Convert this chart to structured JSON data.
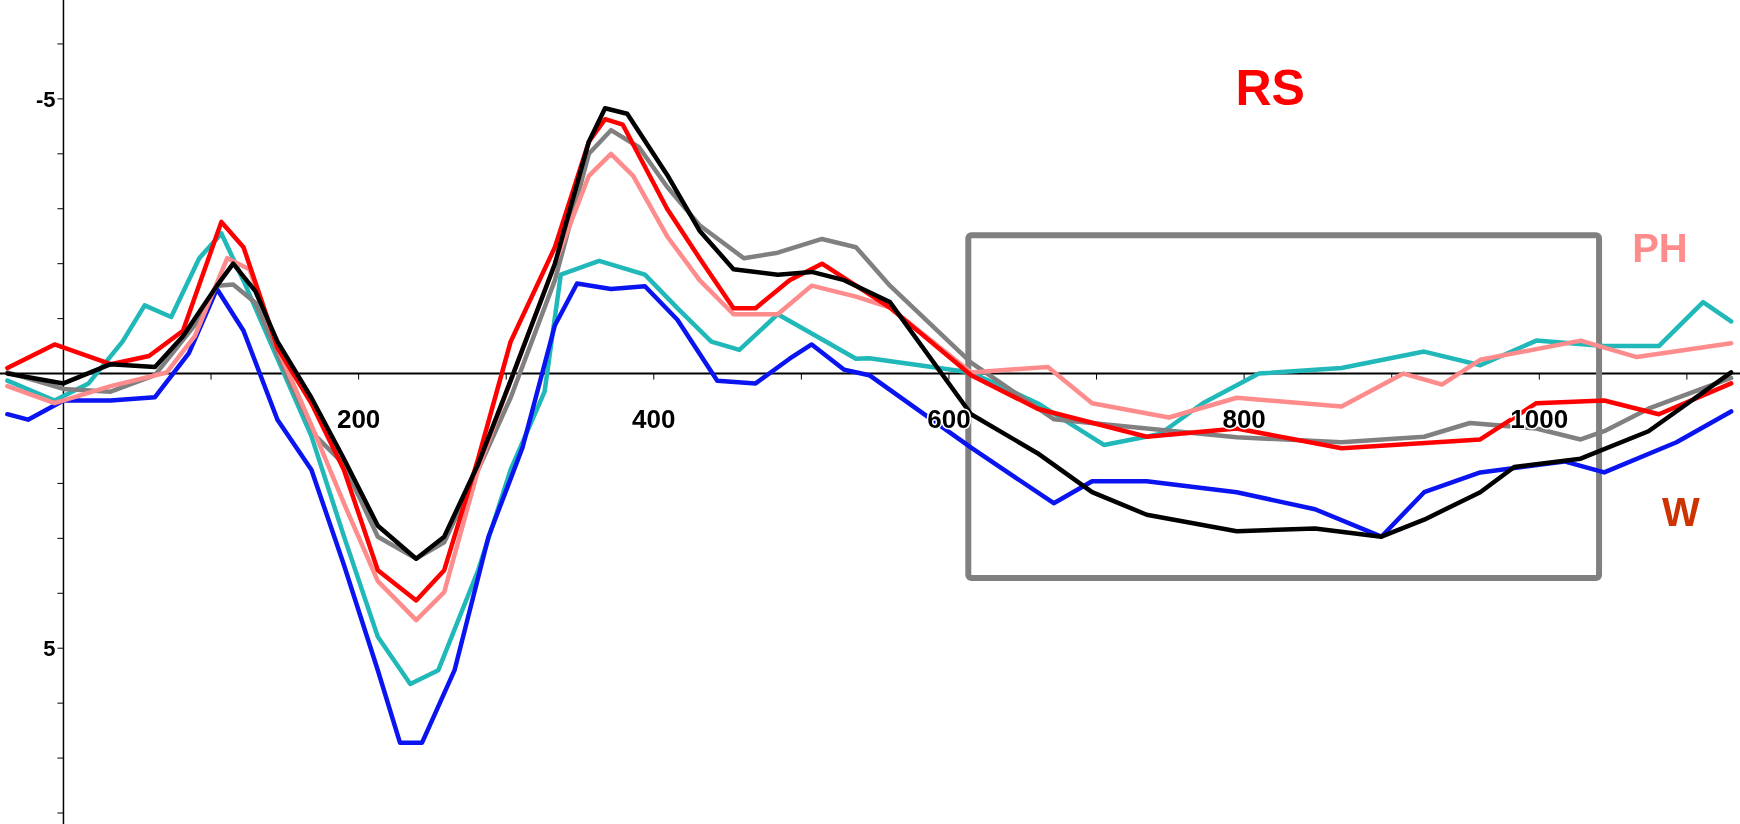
{
  "chart_data": {
    "type": "line",
    "title": "RS",
    "annotations": [
      "W"
    ],
    "xlim": [
      -43,
      1136
    ],
    "ylim": [
      8.2,
      -6.8
    ],
    "xticks": [
      {
        "value": 100,
        "label": null
      },
      200,
      {
        "value": 300,
        "label": null
      },
      400,
      {
        "value": 500,
        "label": null
      },
      600,
      {
        "value": 700,
        "label": null
      },
      800,
      {
        "value": 900,
        "label": null
      },
      1000,
      {
        "value": 1100,
        "label": null
      }
    ],
    "yticks": [
      {
        "value": -6,
        "label": null
      },
      -5,
      {
        "value": -4,
        "label": null
      },
      {
        "value": -3,
        "label": null
      },
      {
        "value": -2,
        "label": null
      },
      {
        "value": -1,
        "label": null
      },
      {
        "value": 0,
        "label": null
      },
      {
        "value": 1,
        "label": null
      },
      {
        "value": 2,
        "label": null
      },
      {
        "value": 3,
        "label": null
      },
      {
        "value": 4,
        "label": null
      },
      5,
      {
        "value": 6,
        "label": null
      },
      {
        "value": 7,
        "label": null
      },
      {
        "value": 8,
        "label": null
      }
    ],
    "grid": false,
    "marker": "none",
    "line_style": "solid",
    "series": [
      {
        "color": "#20b8b8",
        "x": [
          -38,
          -6,
          17,
          40,
          55,
          73,
          92,
          107,
          122,
          145,
          168,
          190,
          213,
          235,
          254,
          281,
          303,
          326,
          337,
          363,
          394,
          416,
          439,
          458,
          484,
          507,
          537,
          546,
          615,
          660,
          705,
          743,
          772,
          810,
          866,
          922,
          960,
          998,
          1044,
          1081,
          1111,
          1130
        ],
        "values": [
          0.13,
          0.49,
          0.18,
          -0.58,
          -1.24,
          -1.03,
          -2.1,
          -2.55,
          -1.69,
          -0.27,
          1.14,
          2.96,
          4.79,
          5.65,
          5.4,
          3.58,
          1.75,
          0.33,
          -1.8,
          -2.05,
          -1.8,
          -1.19,
          -0.58,
          -0.43,
          -1.08,
          -0.73,
          -0.27,
          -0.28,
          -0.02,
          0.54,
          1.3,
          1.1,
          0.54,
          0,
          -0.1,
          -0.4,
          -0.15,
          -0.6,
          -0.5,
          -0.5,
          -1.3,
          -0.95
        ]
      },
      {
        "color": "#0a14f0",
        "x": [
          -38,
          -24,
          0,
          32,
          62,
          85,
          104,
          122,
          145,
          168,
          190,
          213,
          228,
          243,
          265,
          288,
          311,
          333,
          348,
          371,
          394,
          416,
          443,
          469,
          492,
          507,
          529,
          546,
          615,
          671,
          697,
          734,
          795,
          848,
          893,
          922,
          960,
          1017,
          1044,
          1093,
          1130
        ],
        "values": [
          0.74,
          0.84,
          0.49,
          0.49,
          0.43,
          -0.37,
          -1.54,
          -0.78,
          0.84,
          1.75,
          3.48,
          5.4,
          6.72,
          6.72,
          5.4,
          2.97,
          1.35,
          -0.88,
          -1.64,
          -1.54,
          -1.59,
          -0.98,
          0.13,
          0.18,
          -0.27,
          -0.53,
          -0.07,
          0.03,
          1.35,
          2.36,
          1.96,
          1.96,
          2.16,
          2.47,
          2.97,
          2.16,
          1.8,
          1.6,
          1.8,
          1.25,
          0.69
        ]
      },
      {
        "color": "#808080",
        "x": [
          -38,
          0,
          32,
          62,
          89,
          104,
          115,
          130,
          153,
          171,
          190,
          213,
          239,
          258,
          281,
          303,
          333,
          356,
          371,
          390,
          409,
          431,
          461,
          484,
          514,
          537,
          560,
          615,
          671,
          734,
          795,
          866,
          922,
          953,
          998,
          1028,
          1044,
          1074,
          1130
        ],
        "values": [
          -0.02,
          0.28,
          0.33,
          0.03,
          -0.88,
          -1.6,
          -1.62,
          -1.29,
          0.13,
          1.14,
          1.65,
          2.97,
          3.37,
          3.07,
          1.75,
          0.44,
          -1.7,
          -4.0,
          -4.43,
          -4.12,
          -3.4,
          -2.7,
          -2.1,
          -2.2,
          -2.45,
          -2.3,
          -1.6,
          -0.2,
          0.83,
          1.0,
          1.16,
          1.25,
          1.15,
          0.9,
          1.0,
          1.2,
          1.05,
          0.64,
          0.08
        ]
      },
      {
        "name": "PH",
        "color": "#ff8c8c",
        "x": [
          -38,
          -6,
          32,
          70,
          89,
          111,
          126,
          145,
          168,
          190,
          213,
          239,
          258,
          281,
          303,
          333,
          356,
          371,
          386,
          409,
          431,
          454,
          484,
          507,
          537,
          560,
          615,
          667,
          697,
          749,
          795,
          866,
          908,
          934,
          960,
          1028,
          1066,
          1130
        ],
        "values": [
          0.23,
          0.54,
          0.23,
          -0.02,
          -0.68,
          -2.1,
          -1.9,
          -0.47,
          0.94,
          2.36,
          3.78,
          4.49,
          3.98,
          1.75,
          0.13,
          -2.0,
          -3.6,
          -4.0,
          -3.6,
          -2.5,
          -1.7,
          -1.08,
          -1.08,
          -1.6,
          -1.4,
          -1.2,
          -0.02,
          -0.12,
          0.54,
          0.8,
          0.44,
          0.6,
          0.0,
          0.2,
          -0.25,
          -0.6,
          -0.3,
          -0.55
        ]
      },
      {
        "color": "#ff0000",
        "x": [
          -38,
          -6,
          32,
          58,
          81,
          107,
          122,
          145,
          168,
          190,
          213,
          239,
          258,
          281,
          303,
          333,
          356,
          367,
          379,
          409,
          431,
          454,
          469,
          492,
          514,
          537,
          560,
          615,
          660,
          734,
          795,
          866,
          960,
          998,
          1044,
          1081,
          1130
        ],
        "values": [
          -0.1,
          -0.53,
          -0.17,
          -0.32,
          -0.78,
          -2.76,
          -2.3,
          -0.47,
          0.54,
          1.75,
          3.58,
          4.13,
          3.58,
          1.55,
          -0.58,
          -2.3,
          -4.22,
          -4.63,
          -4.53,
          -3.0,
          -2.1,
          -1.19,
          -1.19,
          -1.7,
          -2.0,
          -1.6,
          -1.2,
          0.03,
          0.64,
          1.15,
          1.0,
          1.36,
          1.2,
          0.54,
          0.49,
          0.74,
          0.18
        ]
      },
      {
        "color": "#000000",
        "x": [
          -38,
          0,
          32,
          62,
          81,
          104,
          115,
          130,
          145,
          168,
          190,
          213,
          239,
          258,
          281,
          303,
          333,
          356,
          367,
          382,
          409,
          431,
          454,
          484,
          507,
          529,
          560,
          615,
          660,
          697,
          734,
          795,
          848,
          893,
          922,
          960,
          983,
          1028,
          1074,
          1130
        ],
        "values": [
          0,
          0.18,
          -0.17,
          -0.12,
          -0.68,
          -1.6,
          -2.0,
          -1.5,
          -0.58,
          0.44,
          1.55,
          2.77,
          3.37,
          2.97,
          1.65,
          0.13,
          -2.0,
          -4.22,
          -4.83,
          -4.73,
          -3.62,
          -2.6,
          -1.9,
          -1.8,
          -1.85,
          -1.7,
          -1.3,
          0.74,
          1.45,
          2.16,
          2.57,
          2.87,
          2.82,
          2.97,
          2.66,
          2.16,
          1.7,
          1.55,
          1.05,
          -0.02
        ]
      }
    ]
  }
}
